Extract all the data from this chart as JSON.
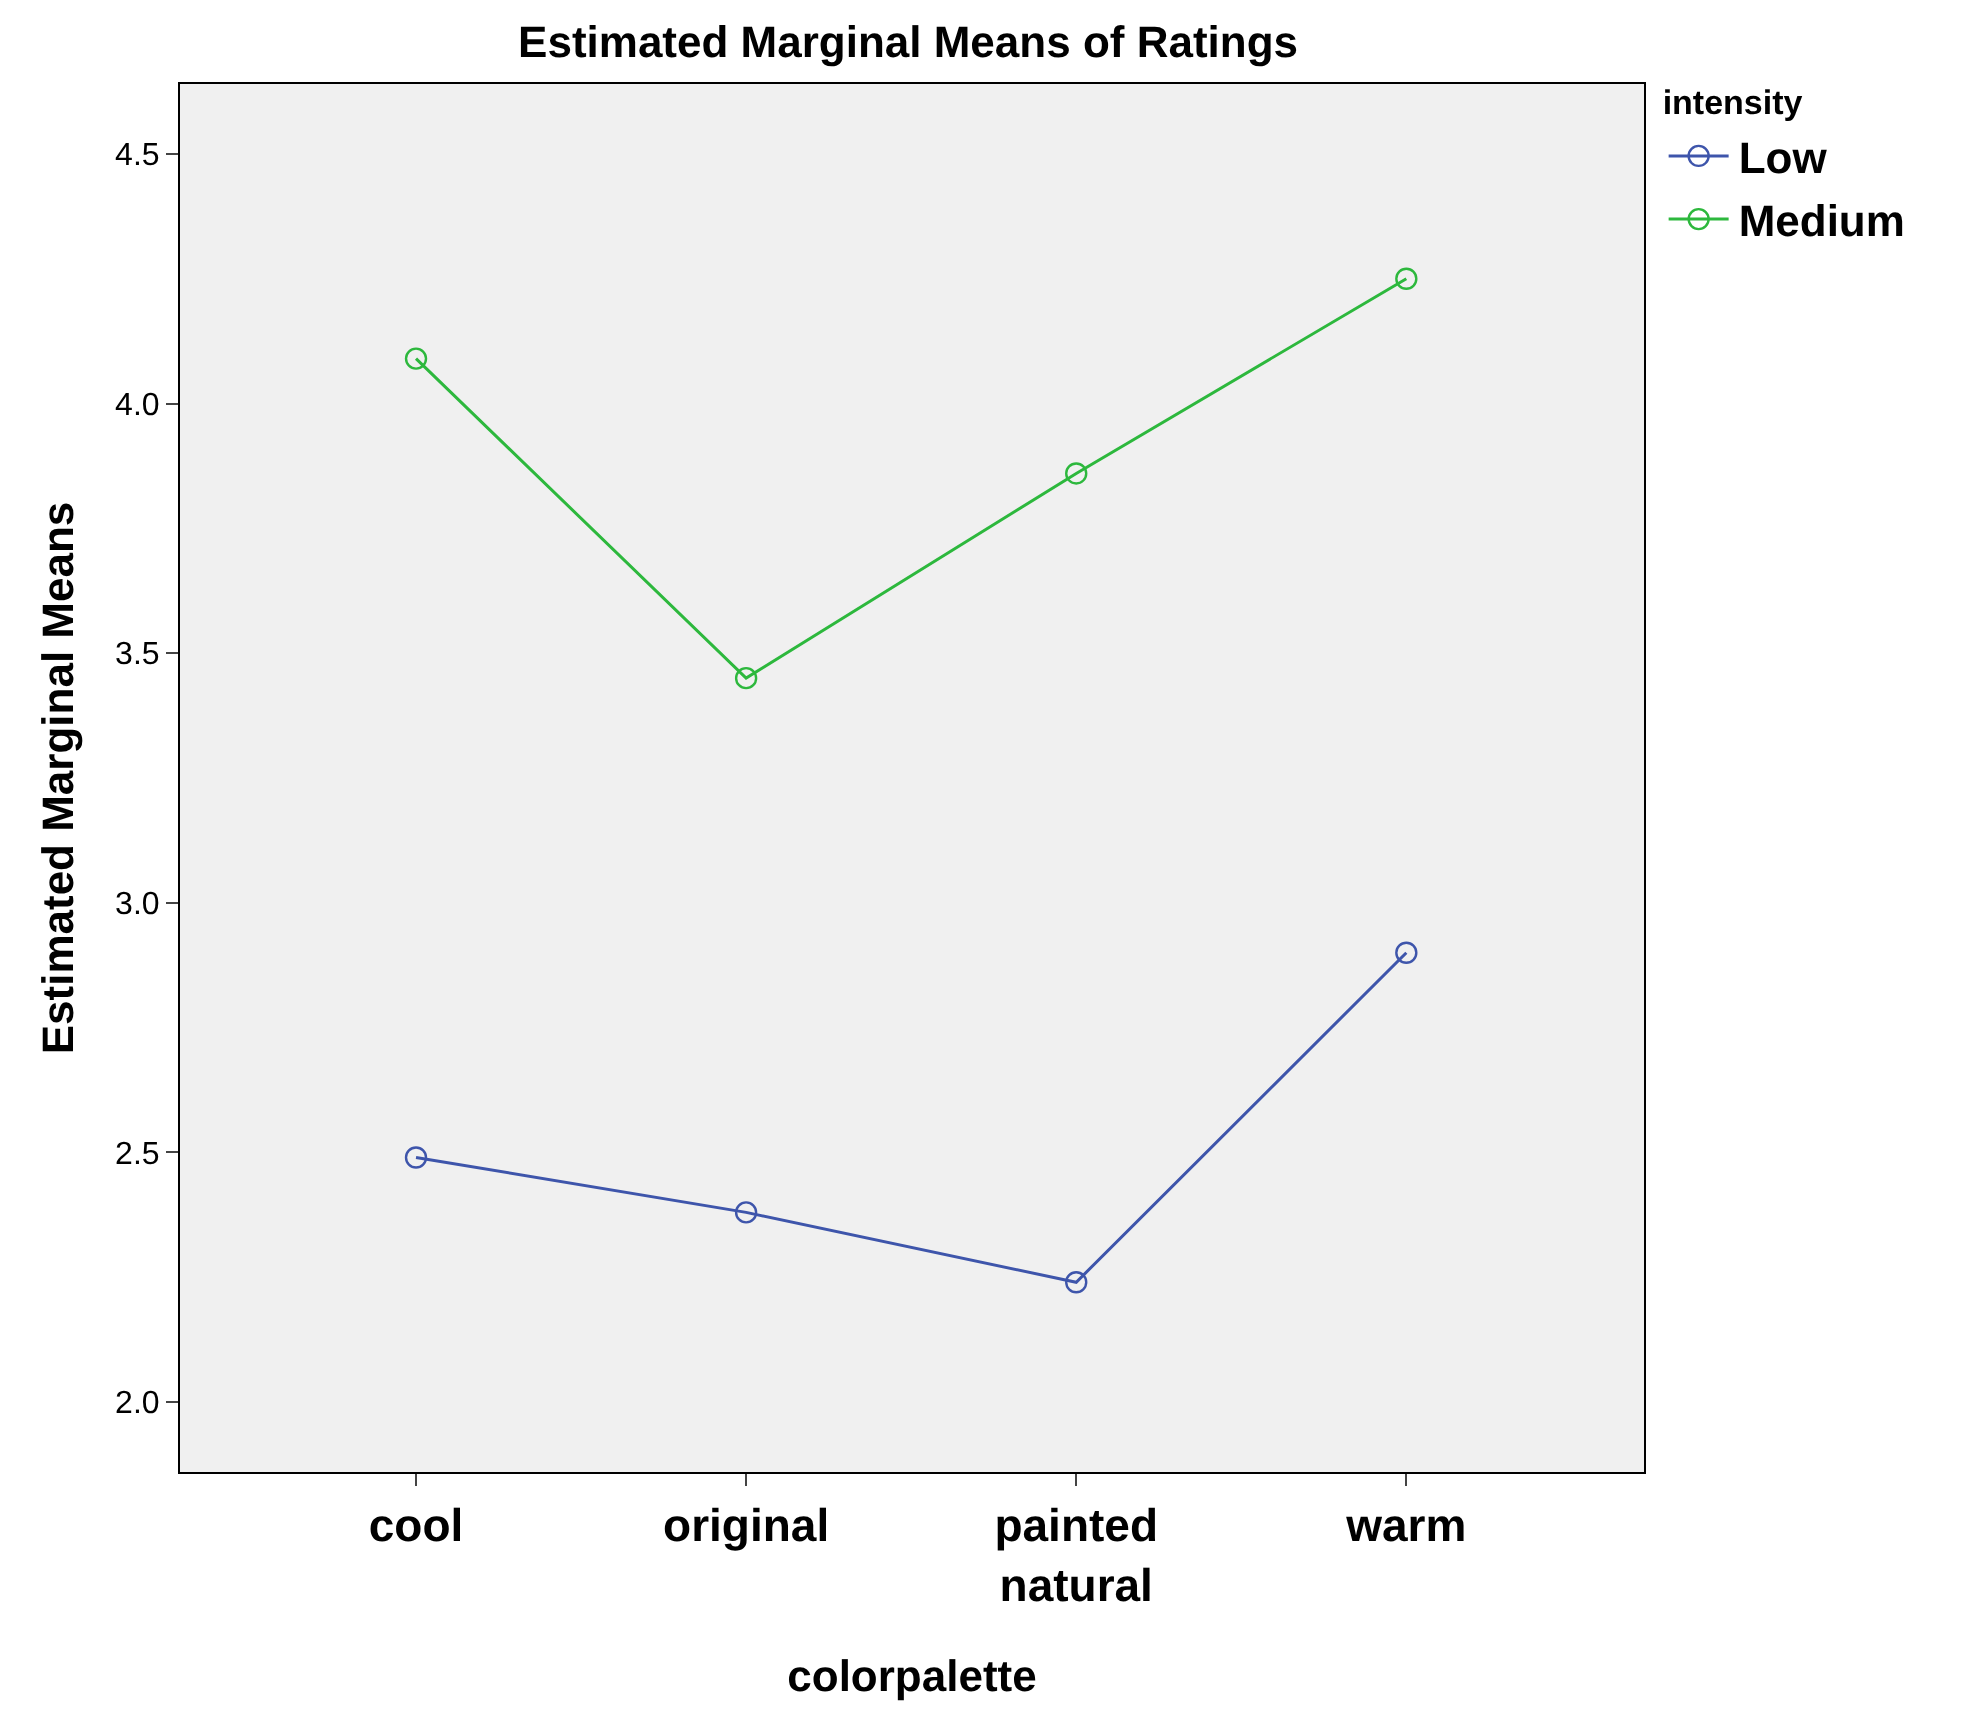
{
  "chart_data": {
    "type": "line",
    "title": "Estimated Marginal Means of Ratings",
    "xlabel": "colorpalette",
    "ylabel": "Estimated Marginal Means",
    "legend_title": "intensity",
    "categories": [
      "cool",
      "original",
      "painted\nnatural",
      "warm"
    ],
    "series": [
      {
        "name": "Low",
        "color": "#3e55ab",
        "values": [
          2.49,
          2.38,
          2.24,
          2.9
        ]
      },
      {
        "name": "Medium",
        "color": "#2db83d",
        "values": [
          4.09,
          3.45,
          3.86,
          4.25
        ]
      }
    ],
    "ylim": [
      1.86,
      4.64
    ],
    "yticks": [
      {
        "value": 2,
        "label": "2.0"
      },
      {
        "value": 2.5,
        "label": "2.5"
      },
      {
        "value": 3,
        "label": "3.0"
      },
      {
        "value": 3.5,
        "label": "3.5"
      },
      {
        "value": 4,
        "label": "4.0"
      },
      {
        "value": 4.5,
        "label": "4.5"
      }
    ],
    "grid": false,
    "legend": "top right",
    "marker": "circle",
    "line_style": "solid"
  }
}
